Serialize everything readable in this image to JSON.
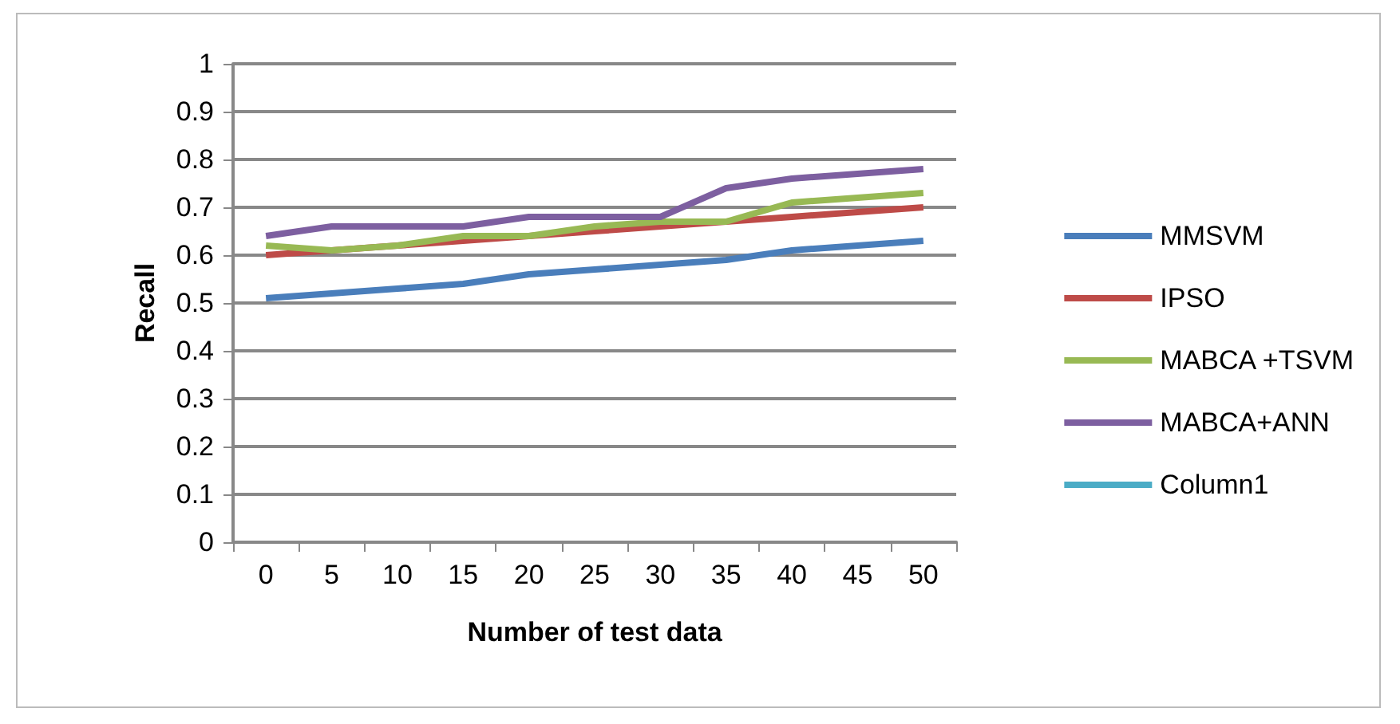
{
  "chart_data": {
    "type": "line",
    "xlabel": "Number of test data",
    "ylabel": "Recall",
    "categories": [
      "0",
      "5",
      "10",
      "15",
      "20",
      "25",
      "30",
      "35",
      "40",
      "45",
      "50"
    ],
    "series": [
      {
        "name": "MMSVM",
        "color": "#4a7ebb",
        "values": [
          0.51,
          0.52,
          0.53,
          0.54,
          0.56,
          0.57,
          0.58,
          0.59,
          0.61,
          0.62,
          0.63
        ]
      },
      {
        "name": "IPSO",
        "color": "#be4b48",
        "values": [
          0.6,
          0.61,
          0.62,
          0.63,
          0.64,
          0.65,
          0.66,
          0.67,
          0.68,
          0.69,
          0.7
        ]
      },
      {
        "name": "MABCA +TSVM",
        "color": "#98b954",
        "values": [
          0.62,
          0.61,
          0.62,
          0.64,
          0.64,
          0.66,
          0.67,
          0.67,
          0.71,
          0.72,
          0.73
        ]
      },
      {
        "name": "MABCA+ANN",
        "color": "#7d5fa0",
        "values": [
          0.64,
          0.66,
          0.66,
          0.66,
          0.68,
          0.68,
          0.68,
          0.74,
          0.76,
          0.77,
          0.78
        ]
      },
      {
        "name": "Column1",
        "color": "#4bacc6",
        "values": [
          null,
          null,
          null,
          null,
          null,
          null,
          null,
          null,
          null,
          null,
          null
        ]
      }
    ],
    "ylim": [
      0,
      1
    ],
    "yticks": [
      0,
      0.1,
      0.2,
      0.3,
      0.4,
      0.5,
      0.6,
      0.7,
      0.8,
      0.9,
      1
    ],
    "grid": "y",
    "legend": "right",
    "marker": "none",
    "line_style": "solid"
  }
}
